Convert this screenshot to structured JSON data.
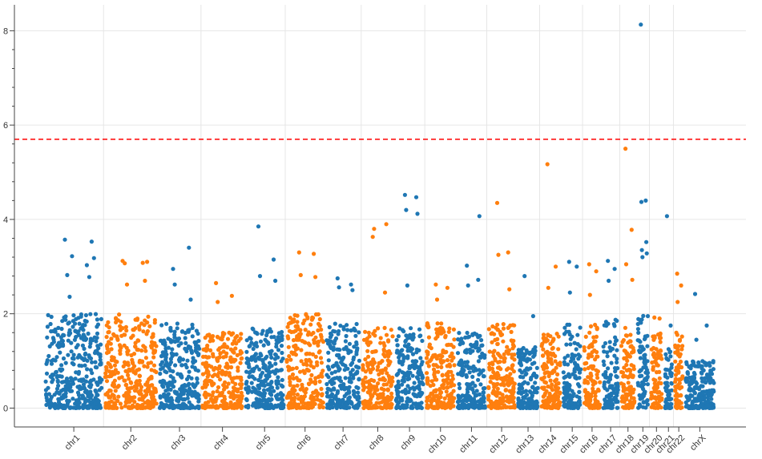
{
  "chart_data": {
    "type": "scatter",
    "title": "",
    "xlabel": "",
    "ylabel": "",
    "ylim": [
      -0.4,
      8.55
    ],
    "yticks": [
      0,
      2,
      4,
      6,
      8
    ],
    "grid": true,
    "threshold": 5.7,
    "colors": {
      "odd": "#1f77b4",
      "even": "#ff7f0e",
      "threshold": "#ff0000",
      "grid": "#e6e6e6"
    },
    "chromosomes": [
      {
        "name": "chr1",
        "maxBase": 2.0,
        "peaks": [
          3.57,
          3.03,
          2.82,
          2.78,
          2.36,
          3.53,
          3.22,
          3.18
        ]
      },
      {
        "name": "chr2",
        "maxBase": 2.0,
        "peaks": [
          3.12,
          3.08,
          3.07,
          2.7,
          2.62,
          3.1
        ]
      },
      {
        "name": "chr3",
        "maxBase": 1.8,
        "peaks": [
          2.95,
          3.4,
          2.62,
          2.3
        ]
      },
      {
        "name": "chr4",
        "maxBase": 1.6,
        "peaks": [
          2.65,
          2.38,
          2.25
        ]
      },
      {
        "name": "chr5",
        "maxBase": 1.7,
        "peaks": [
          3.85,
          3.15,
          2.8,
          2.7
        ]
      },
      {
        "name": "chr6",
        "maxBase": 2.0,
        "peaks": [
          3.3,
          3.27,
          2.82,
          2.78
        ]
      },
      {
        "name": "chr7",
        "maxBase": 1.8,
        "peaks": [
          2.75,
          2.62,
          2.56,
          2.5
        ]
      },
      {
        "name": "chr8",
        "maxBase": 1.7,
        "peaks": [
          3.63,
          2.45,
          3.8,
          3.9
        ]
      },
      {
        "name": "chr9",
        "maxBase": 1.7,
        "peaks": [
          4.52,
          4.47,
          4.2,
          4.12,
          2.6
        ]
      },
      {
        "name": "chr10",
        "maxBase": 1.8,
        "peaks": [
          2.62,
          2.55,
          2.3
        ]
      },
      {
        "name": "chr11",
        "maxBase": 1.6,
        "peaks": [
          3.02,
          2.72,
          2.6,
          4.07
        ]
      },
      {
        "name": "chr12",
        "maxBase": 1.8,
        "peaks": [
          4.35,
          3.3,
          3.25,
          2.52
        ]
      },
      {
        "name": "chr13",
        "maxBase": 1.3,
        "peaks": [
          2.8,
          1.95
        ]
      },
      {
        "name": "chr14",
        "maxBase": 1.6,
        "peaks": [
          5.17,
          3.0,
          2.55
        ]
      },
      {
        "name": "chr15",
        "maxBase": 1.8,
        "peaks": [
          3.1,
          3.0,
          2.45
        ]
      },
      {
        "name": "chr16",
        "maxBase": 1.8,
        "peaks": [
          3.05,
          2.9,
          2.4
        ]
      },
      {
        "name": "chr17",
        "maxBase": 1.9,
        "peaks": [
          3.12,
          2.95,
          2.7
        ]
      },
      {
        "name": "chr18",
        "maxBase": 1.7,
        "peaks": [
          5.5,
          3.78,
          3.05,
          2.72
        ]
      },
      {
        "name": "chr19",
        "maxBase": 2.0,
        "peaks": [
          8.13,
          4.4,
          4.37,
          3.52,
          3.35,
          3.28,
          3.2
        ]
      },
      {
        "name": "chr20",
        "maxBase": 1.6,
        "peaks": [
          1.92,
          1.9
        ]
      },
      {
        "name": "chr21",
        "maxBase": 1.3,
        "peaks": [
          4.07,
          1.75
        ]
      },
      {
        "name": "chr22",
        "maxBase": 1.6,
        "peaks": [
          2.85,
          2.6,
          2.25
        ]
      },
      {
        "name": "chrX",
        "maxBase": 1.0,
        "peaks": [
          2.42,
          1.75,
          1.45
        ]
      }
    ]
  }
}
